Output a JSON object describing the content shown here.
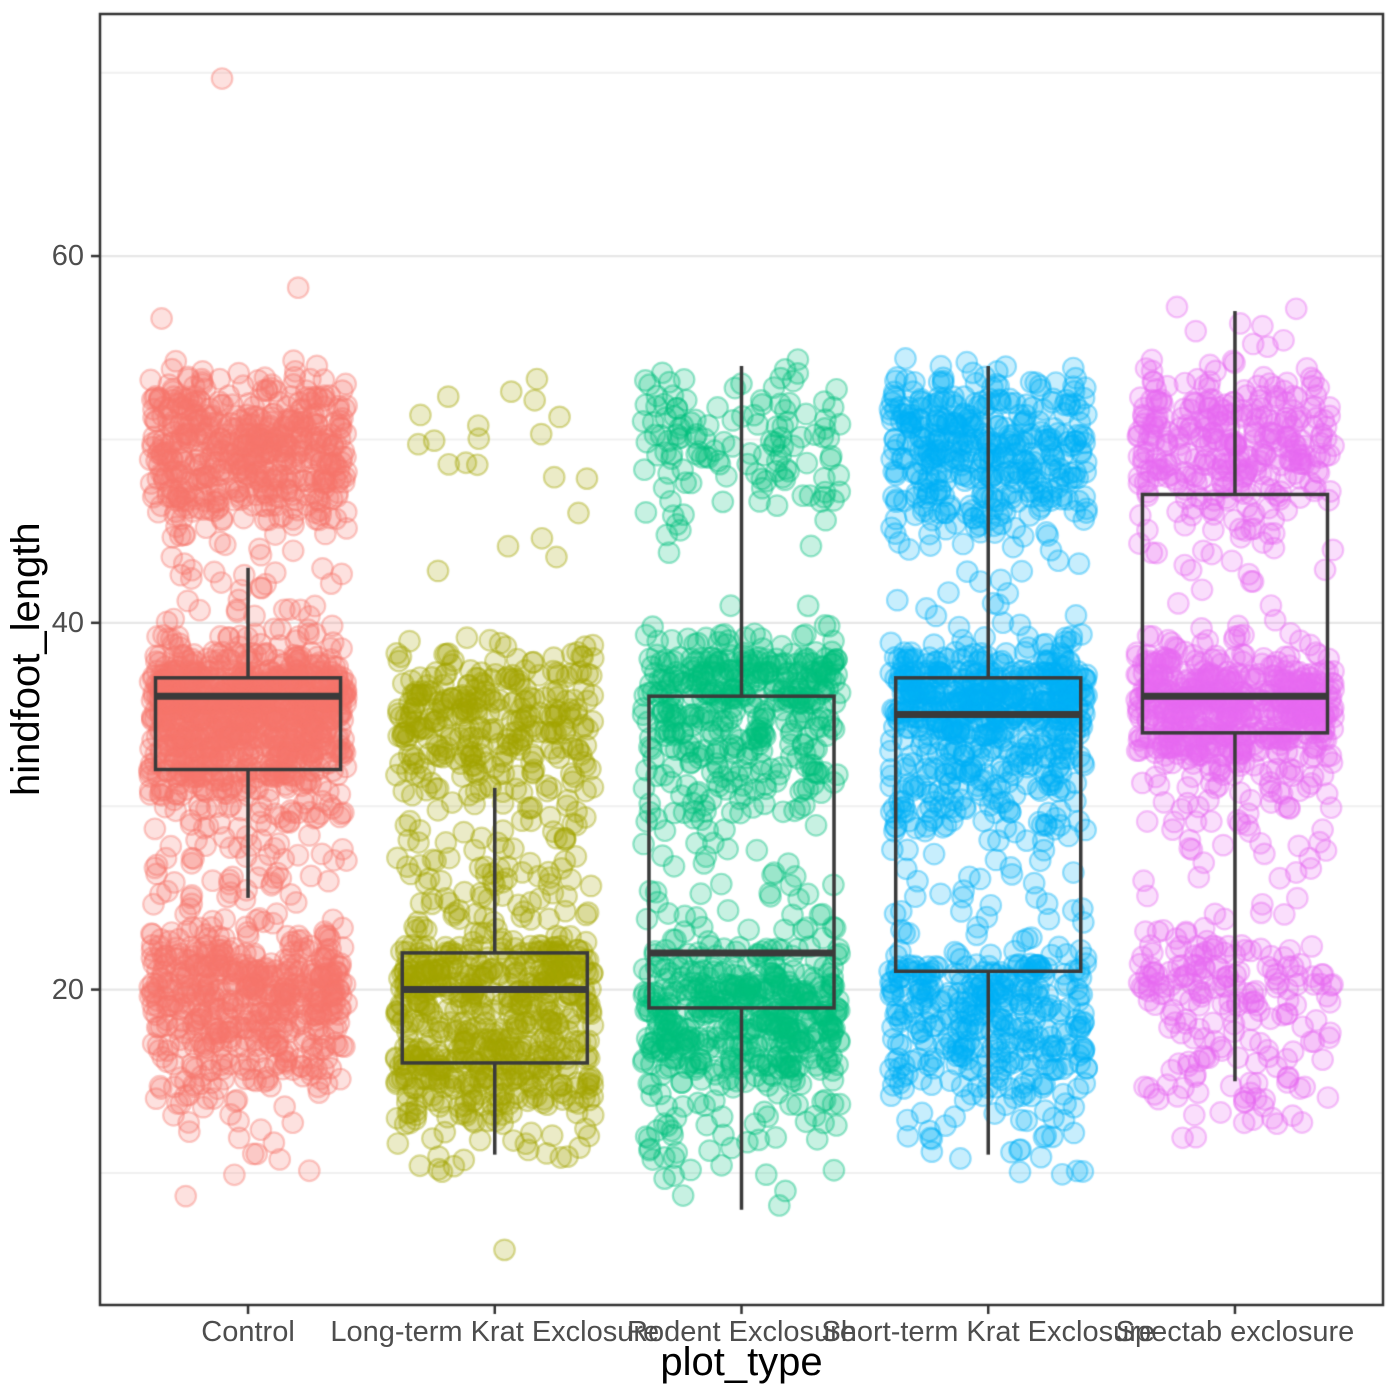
{
  "figure": {
    "x_title": "plot_type",
    "y_title": "hindfoot_length"
  },
  "chart_data": {
    "type": "boxplot-jitter",
    "title": "",
    "xlabel": "plot_type",
    "ylabel": "hindfoot_length",
    "legend": "none",
    "grid": "horizontal-only",
    "ylim": [
      2.8,
      73.2
    ],
    "y_major_ticks": [
      20,
      40,
      60
    ],
    "y_minor_gridlines": [
      10,
      30,
      50,
      70
    ],
    "categories": [
      "Control",
      "Long-term Krat Exclosure",
      "Rodent Exclosure",
      "Short-term Krat Exclosure",
      "Spectab exclosure"
    ],
    "style": {
      "panel_border_color": "#333333",
      "grid_major_color": "#E7E7E7",
      "grid_minor_color": "#F1F1F1",
      "tick_mark_color": "#333333",
      "tick_text_color": "#4D4D4D",
      "axis_title_color": "#000000",
      "box_line_color": "#3A3A3A",
      "point_fill_opacity": 0.22,
      "point_stroke_opacity": 0.38
    },
    "series": [
      {
        "name": "Control",
        "color": "#F8766D",
        "box": {
          "lower_whisker": 25,
          "q1": 32,
          "median": 36,
          "q3": 37,
          "upper_whisker": 43
        },
        "hist": [
          [
            9,
            1
          ],
          [
            10,
            2
          ],
          [
            11,
            3
          ],
          [
            12,
            4
          ],
          [
            13,
            5
          ],
          [
            14,
            12
          ],
          [
            15,
            25
          ],
          [
            16,
            38
          ],
          [
            17,
            48
          ],
          [
            18,
            58
          ],
          [
            19,
            75
          ],
          [
            20,
            95
          ],
          [
            21,
            85
          ],
          [
            22,
            55
          ],
          [
            23,
            28
          ],
          [
            24,
            10
          ],
          [
            25,
            12
          ],
          [
            26,
            14
          ],
          [
            27,
            14
          ],
          [
            28,
            13
          ],
          [
            29,
            16
          ],
          [
            30,
            26
          ],
          [
            31,
            45
          ],
          [
            32,
            85
          ],
          [
            33,
            105
          ],
          [
            34,
            115
          ],
          [
            35,
            150
          ],
          [
            36,
            185
          ],
          [
            37,
            135
          ],
          [
            38,
            60
          ],
          [
            39,
            24
          ],
          [
            40,
            8
          ],
          [
            41,
            9
          ],
          [
            42,
            7
          ],
          [
            43,
            8
          ],
          [
            44,
            6
          ],
          [
            45,
            10
          ],
          [
            46,
            38
          ],
          [
            47,
            60
          ],
          [
            48,
            72
          ],
          [
            49,
            85
          ],
          [
            50,
            92
          ],
          [
            51,
            72
          ],
          [
            52,
            58
          ],
          [
            53,
            28
          ],
          [
            54,
            7
          ],
          [
            57,
            1
          ],
          [
            58,
            1
          ],
          [
            70,
            1
          ]
        ]
      },
      {
        "name": "Long-term Krat Exclosure",
        "color": "#A3A500",
        "box": {
          "lower_whisker": 11,
          "q1": 16,
          "median": 20,
          "q3": 22,
          "upper_whisker": 31
        },
        "hist": [
          [
            6,
            1
          ],
          [
            10,
            4
          ],
          [
            11,
            7
          ],
          [
            12,
            10
          ],
          [
            13,
            22
          ],
          [
            14,
            40
          ],
          [
            15,
            62
          ],
          [
            16,
            70
          ],
          [
            17,
            58
          ],
          [
            18,
            48
          ],
          [
            19,
            52
          ],
          [
            20,
            70
          ],
          [
            21,
            82
          ],
          [
            22,
            58
          ],
          [
            23,
            16
          ],
          [
            24,
            15
          ],
          [
            25,
            15
          ],
          [
            26,
            17
          ],
          [
            27,
            14
          ],
          [
            28,
            12
          ],
          [
            29,
            12
          ],
          [
            30,
            10
          ],
          [
            31,
            20
          ],
          [
            32,
            30
          ],
          [
            33,
            42
          ],
          [
            34,
            48
          ],
          [
            35,
            52
          ],
          [
            36,
            50
          ],
          [
            37,
            38
          ],
          [
            38,
            18
          ],
          [
            39,
            7
          ],
          [
            43,
            1
          ],
          [
            44,
            2
          ],
          [
            45,
            1
          ],
          [
            46,
            1
          ],
          [
            48,
            2
          ],
          [
            49,
            3
          ],
          [
            50,
            4
          ],
          [
            51,
            3
          ],
          [
            52,
            2
          ],
          [
            53,
            2
          ]
        ]
      },
      {
        "name": "Rodent Exclosure",
        "color": "#00BF7D",
        "box": {
          "lower_whisker": 8,
          "q1": 19,
          "median": 22,
          "q3": 36,
          "upper_whisker": 54
        },
        "hist": [
          [
            8,
            1
          ],
          [
            9,
            2
          ],
          [
            10,
            6
          ],
          [
            11,
            8
          ],
          [
            12,
            10
          ],
          [
            13,
            12
          ],
          [
            14,
            14
          ],
          [
            15,
            22
          ],
          [
            16,
            55
          ],
          [
            17,
            68
          ],
          [
            18,
            70
          ],
          [
            19,
            72
          ],
          [
            20,
            82
          ],
          [
            21,
            40
          ],
          [
            22,
            28
          ],
          [
            23,
            12
          ],
          [
            24,
            8
          ],
          [
            25,
            8
          ],
          [
            26,
            6
          ],
          [
            27,
            5
          ],
          [
            28,
            5
          ],
          [
            29,
            8
          ],
          [
            30,
            18
          ],
          [
            31,
            22
          ],
          [
            32,
            28
          ],
          [
            33,
            32
          ],
          [
            34,
            38
          ],
          [
            35,
            45
          ],
          [
            36,
            65
          ],
          [
            37,
            72
          ],
          [
            38,
            58
          ],
          [
            39,
            20
          ],
          [
            40,
            3
          ],
          [
            41,
            2
          ],
          [
            44,
            2
          ],
          [
            45,
            3
          ],
          [
            46,
            5
          ],
          [
            47,
            12
          ],
          [
            48,
            16
          ],
          [
            49,
            20
          ],
          [
            50,
            22
          ],
          [
            51,
            20
          ],
          [
            52,
            16
          ],
          [
            53,
            10
          ],
          [
            54,
            4
          ]
        ]
      },
      {
        "name": "Short-term Krat Exclosure",
        "color": "#00B0F6",
        "box": {
          "lower_whisker": 11,
          "q1": 21,
          "median": 35,
          "q3": 37,
          "upper_whisker": 54
        },
        "hist": [
          [
            10,
            4
          ],
          [
            11,
            6
          ],
          [
            12,
            8
          ],
          [
            13,
            10
          ],
          [
            14,
            12
          ],
          [
            15,
            25
          ],
          [
            16,
            40
          ],
          [
            17,
            45
          ],
          [
            18,
            45
          ],
          [
            19,
            48
          ],
          [
            20,
            58
          ],
          [
            21,
            62
          ],
          [
            22,
            12
          ],
          [
            23,
            8
          ],
          [
            24,
            8
          ],
          [
            25,
            7
          ],
          [
            26,
            6
          ],
          [
            27,
            5
          ],
          [
            28,
            8
          ],
          [
            29,
            25
          ],
          [
            30,
            30
          ],
          [
            31,
            35
          ],
          [
            32,
            40
          ],
          [
            33,
            45
          ],
          [
            34,
            58
          ],
          [
            35,
            95
          ],
          [
            36,
            115
          ],
          [
            37,
            92
          ],
          [
            38,
            45
          ],
          [
            39,
            15
          ],
          [
            40,
            5
          ],
          [
            41,
            4
          ],
          [
            42,
            4
          ],
          [
            43,
            4
          ],
          [
            44,
            6
          ],
          [
            45,
            15
          ],
          [
            46,
            30
          ],
          [
            47,
            42
          ],
          [
            48,
            52
          ],
          [
            49,
            58
          ],
          [
            50,
            62
          ],
          [
            51,
            55
          ],
          [
            52,
            45
          ],
          [
            53,
            24
          ],
          [
            54,
            7
          ]
        ]
      },
      {
        "name": "Spectab exclosure",
        "color": "#E76BF3",
        "box": {
          "lower_whisker": 15,
          "q1": 34,
          "median": 36,
          "q3": 47,
          "upper_whisker": 57
        },
        "hist": [
          [
            12,
            2
          ],
          [
            13,
            8
          ],
          [
            14,
            12
          ],
          [
            15,
            14
          ],
          [
            16,
            14
          ],
          [
            17,
            12
          ],
          [
            18,
            14
          ],
          [
            19,
            22
          ],
          [
            20,
            32
          ],
          [
            21,
            38
          ],
          [
            22,
            24
          ],
          [
            23,
            8
          ],
          [
            24,
            4
          ],
          [
            25,
            3
          ],
          [
            26,
            4
          ],
          [
            27,
            4
          ],
          [
            28,
            8
          ],
          [
            29,
            10
          ],
          [
            30,
            12
          ],
          [
            31,
            16
          ],
          [
            32,
            26
          ],
          [
            33,
            62
          ],
          [
            34,
            85
          ],
          [
            35,
            105
          ],
          [
            36,
            115
          ],
          [
            37,
            82
          ],
          [
            38,
            42
          ],
          [
            39,
            15
          ],
          [
            40,
            3
          ],
          [
            41,
            2
          ],
          [
            42,
            3
          ],
          [
            43,
            5
          ],
          [
            44,
            8
          ],
          [
            45,
            10
          ],
          [
            46,
            14
          ],
          [
            47,
            26
          ],
          [
            48,
            42
          ],
          [
            49,
            52
          ],
          [
            50,
            56
          ],
          [
            51,
            50
          ],
          [
            52,
            40
          ],
          [
            53,
            20
          ],
          [
            54,
            8
          ],
          [
            55,
            3
          ],
          [
            56,
            3
          ],
          [
            57,
            2
          ]
        ]
      }
    ]
  }
}
